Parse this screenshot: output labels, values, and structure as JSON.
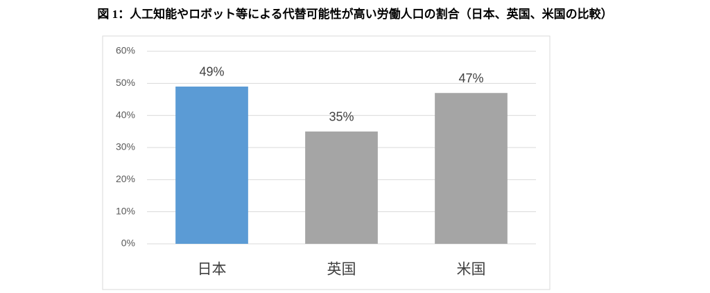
{
  "chart_data": {
    "type": "bar",
    "title": "図 1：人工知能やロボット等による代替可能性が高い労働人口の割合（日本、英国、米国の比較）",
    "categories": [
      "日本",
      "英国",
      "米国"
    ],
    "values": [
      49,
      35,
      47
    ],
    "value_labels": [
      "49%",
      "35%",
      "47%"
    ],
    "colors": [
      "#5b9bd5",
      "#a5a5a5",
      "#a5a5a5"
    ],
    "ylim": [
      0,
      60
    ],
    "yticks": [
      {
        "value": 0,
        "label": "0%"
      },
      {
        "value": 10,
        "label": "10%"
      },
      {
        "value": 20,
        "label": "20%"
      },
      {
        "value": 30,
        "label": "30%"
      },
      {
        "value": 40,
        "label": "40%"
      },
      {
        "value": 50,
        "label": "50%"
      },
      {
        "value": 60,
        "label": "60%"
      }
    ],
    "grid": true
  }
}
